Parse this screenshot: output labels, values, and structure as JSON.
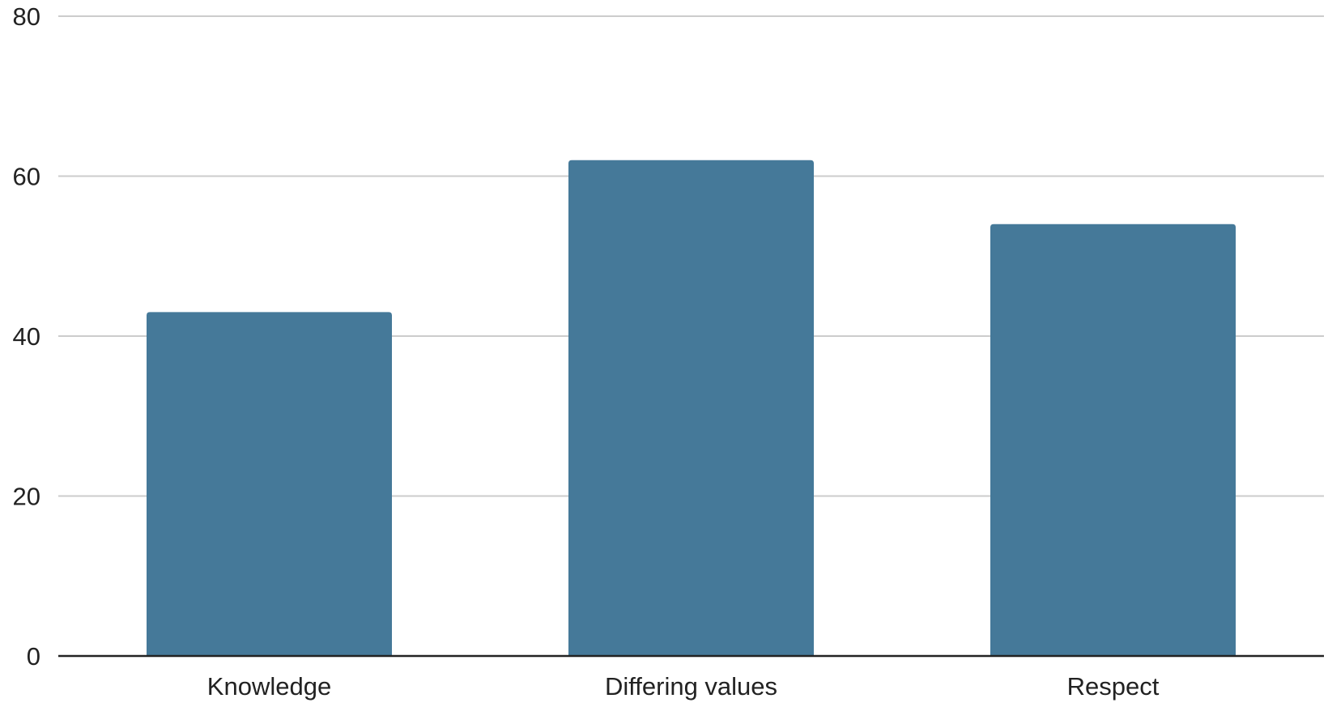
{
  "chart_data": {
    "type": "bar",
    "title": "",
    "xlabel": "",
    "ylabel": "",
    "categories": [
      "Knowledge",
      "Differing values",
      "Respect"
    ],
    "values": [
      43,
      62,
      54
    ],
    "ylim": [
      0,
      80
    ],
    "yticks": [
      "0",
      "20",
      "40",
      "60",
      "80"
    ],
    "grid": true,
    "legend": "none",
    "colors": {
      "bar": "#457999",
      "grid": "#cccccc",
      "axis": "#222222"
    }
  }
}
